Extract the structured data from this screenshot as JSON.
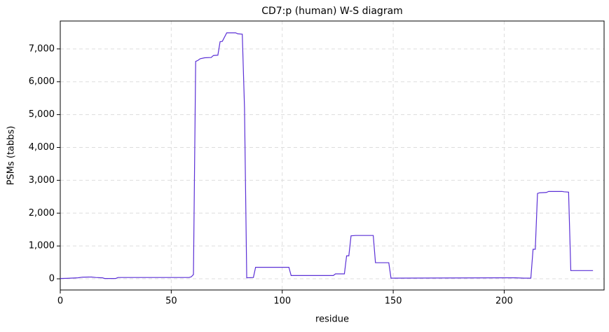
{
  "chart_data": {
    "type": "line",
    "title": "CD7:p (human) W-S diagram",
    "x_label": "residue",
    "y_label": "PSMs (tabbs)",
    "x": [
      0,
      3,
      8,
      10,
      14,
      16,
      19,
      20,
      25,
      26,
      58,
      59,
      60,
      61,
      62,
      63,
      65,
      68,
      69,
      71,
      72,
      73,
      75,
      79,
      80,
      82,
      83,
      84,
      87,
      88,
      103,
      104,
      123,
      124,
      128,
      129,
      130,
      131,
      133,
      141,
      142,
      148,
      149,
      200,
      205,
      209,
      212,
      213,
      214,
      215,
      216,
      219,
      220,
      226,
      227,
      229,
      230,
      240
    ],
    "series": [
      {
        "name": "PSMs",
        "color": "#5b30d6",
        "values": [
          10,
          15,
          30,
          50,
          55,
          40,
          30,
          10,
          10,
          40,
          40,
          60,
          130,
          6620,
          6650,
          6700,
          6730,
          6740,
          6800,
          6810,
          7220,
          7230,
          7490,
          7490,
          7460,
          7450,
          5200,
          30,
          40,
          350,
          350,
          100,
          100,
          150,
          150,
          700,
          700,
          1310,
          1320,
          1320,
          490,
          490,
          20,
          30,
          30,
          20,
          20,
          900,
          900,
          2600,
          2620,
          2630,
          2660,
          2660,
          2650,
          2640,
          250,
          250
        ]
      }
    ],
    "xlim": [
      0,
      245
    ],
    "ylim": [
      -340,
      7850
    ],
    "xticks": [
      0,
      50,
      100,
      150,
      200
    ],
    "yticks": [
      0,
      {
        "value": 1000,
        "label": "1,000"
      },
      {
        "value": 2000,
        "label": "2,000"
      },
      {
        "value": 3000,
        "label": "3,000"
      },
      {
        "value": 4000,
        "label": "4,000"
      },
      {
        "value": 5000,
        "label": "5,000"
      },
      {
        "value": 6000,
        "label": "6,000"
      },
      {
        "value": 7000,
        "label": "7,000"
      }
    ],
    "grid": true
  }
}
